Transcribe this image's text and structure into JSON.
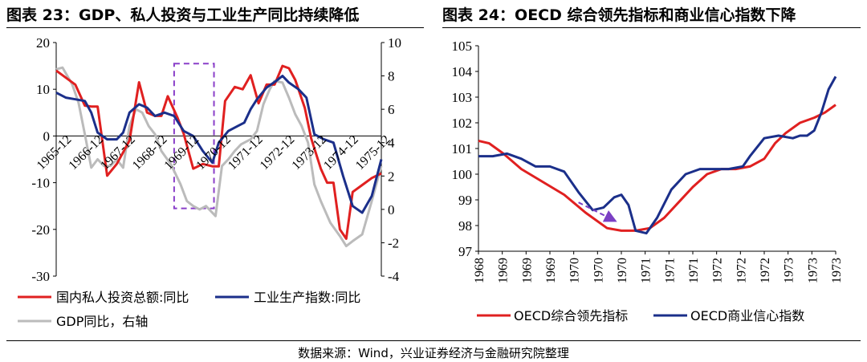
{
  "charts": {
    "left_title": "图表 23：GDP、私人投资与工业生产同比持续降低",
    "right_title": "图表 24：OECD 综合领先指标和商业信心指数下降"
  },
  "source": "数据来源：Wind，兴业证券经济与金融研究院整理",
  "chart_data": [
    {
      "type": "line",
      "title": "图表 23：GDP、私人投资与工业生产同比持续降低",
      "x_tick_labels": [
        "1965-12",
        "1966-12",
        "1967-12",
        "1968-12",
        "1969-12",
        "1970-12",
        "1971-12",
        "1972-12",
        "1973-12",
        "1974-12",
        "1975-12"
      ],
      "y_left_ticks": [
        20,
        10,
        0,
        -10,
        -20,
        -30
      ],
      "y_right_ticks": [
        10,
        8,
        6,
        4,
        2,
        0,
        -2,
        -4
      ],
      "ylim_left": [
        -30,
        20
      ],
      "ylim_right": [
        -4,
        10
      ],
      "x_range": [
        1965.9,
        1976.1
      ],
      "highlight_box": {
        "x_from": 1969.6,
        "x_to": 1970.85,
        "y_from": -15.5,
        "y_to": 15.5
      },
      "series": [
        {
          "name": "国内私人投资总额:同比",
          "axis": "left",
          "color": "#e02020",
          "x": [
            1965.9,
            1966.2,
            1966.5,
            1966.8,
            1967.0,
            1967.2,
            1967.5,
            1967.8,
            1968.0,
            1968.2,
            1968.5,
            1968.75,
            1969.0,
            1969.2,
            1969.4,
            1969.7,
            1969.9,
            1970.2,
            1970.5,
            1970.8,
            1971.0,
            1971.2,
            1971.5,
            1971.75,
            1972.0,
            1972.25,
            1972.5,
            1972.75,
            1973.0,
            1973.2,
            1973.4,
            1973.5,
            1973.7,
            1973.9,
            1974.2,
            1974.4,
            1974.6,
            1974.8,
            1975.0,
            1975.2,
            1975.5,
            1975.8,
            1976.1
          ],
          "y": [
            14,
            12.5,
            11,
            6.5,
            6.3,
            6.3,
            -8.5,
            -6,
            -3.5,
            -1,
            11.5,
            5,
            4.3,
            4.3,
            8.5,
            4,
            0.5,
            -7,
            -6,
            -6.5,
            -6.5,
            7.5,
            10.5,
            10,
            13,
            7,
            11,
            11,
            15,
            14.5,
            12,
            10,
            6,
            -0.5,
            -7,
            -10,
            -10,
            -20,
            -22,
            -12,
            -10.5,
            -9,
            -8
          ]
        },
        {
          "name": "工业生产指数:同比",
          "axis": "right",
          "color": "#1b2f8a",
          "x": [
            1965.9,
            1966.2,
            1966.5,
            1966.8,
            1967.0,
            1967.2,
            1967.5,
            1967.8,
            1968.0,
            1968.2,
            1968.5,
            1968.75,
            1969.0,
            1969.3,
            1969.6,
            1969.9,
            1970.2,
            1970.5,
            1970.8,
            1971.0,
            1971.3,
            1971.6,
            1971.8,
            1972.0,
            1972.2,
            1972.5,
            1972.8,
            1973.0,
            1973.2,
            1973.5,
            1973.75,
            1974.0,
            1974.3,
            1974.6,
            1974.9,
            1975.2,
            1975.5,
            1975.8,
            1976.1
          ],
          "y": [
            7,
            6.7,
            6.6,
            6.5,
            5.8,
            4.6,
            4.2,
            4.2,
            4.6,
            5.8,
            6.3,
            6.1,
            5.6,
            5.8,
            5.6,
            4.7,
            4.4,
            3.5,
            2.8,
            4,
            4.7,
            5,
            5.2,
            6,
            6.6,
            7.3,
            7.7,
            8,
            7.6,
            7.2,
            6.7,
            4.5,
            4.2,
            4.0,
            2,
            0.2,
            -0.2,
            0.8,
            3
          ]
        },
        {
          "name": "GDP同比，右轴",
          "axis": "right",
          "color": "#bbbbbb",
          "x": [
            1965.9,
            1966.1,
            1966.4,
            1966.6,
            1966.8,
            1967.0,
            1967.2,
            1967.4,
            1967.6,
            1967.8,
            1968.0,
            1968.2,
            1968.4,
            1968.6,
            1968.8,
            1969.0,
            1969.2,
            1969.5,
            1969.8,
            1970.0,
            1970.2,
            1970.4,
            1970.6,
            1970.9,
            1971.1,
            1971.3,
            1971.5,
            1971.7,
            1972.0,
            1972.2,
            1972.4,
            1972.6,
            1972.75,
            1973.0,
            1973.2,
            1973.4,
            1973.6,
            1973.8,
            1974.0,
            1974.2,
            1974.5,
            1974.8,
            1975.0,
            1975.2,
            1975.5,
            1975.8,
            1976.1
          ],
          "y": [
            8.4,
            8.5,
            7.5,
            6.4,
            4.5,
            2.5,
            3.0,
            2.6,
            2.6,
            3.0,
            2.5,
            5,
            6,
            5.8,
            5,
            4.5,
            3.5,
            2.7,
            1.5,
            0.5,
            0.2,
            0,
            0.2,
            -0.4,
            2.6,
            3,
            3.5,
            3.9,
            4.2,
            4.7,
            6.3,
            7.2,
            7.7,
            7.6,
            6.7,
            5.7,
            5,
            4,
            1.5,
            0.5,
            -0.8,
            -1.6,
            -2.2,
            -1.9,
            -1.5,
            0.5,
            2.6
          ]
        }
      ]
    },
    {
      "type": "line",
      "title": "图表 24：OECD 综合领先指标和商业信心指数下降",
      "x_tick_labels": [
        "1968",
        "1969",
        "1969",
        "1969",
        "1970",
        "1970",
        "1970",
        "1971",
        "1971",
        "1971",
        "1972",
        "1972",
        "1972",
        "1973",
        "1973",
        "1973"
      ],
      "y_ticks": [
        105,
        104,
        103,
        102,
        101,
        100,
        99,
        98,
        97
      ],
      "ylim": [
        97,
        105
      ],
      "x_range": [
        1968.0,
        1973.0
      ],
      "series": [
        {
          "name": "OECD综合领先指标",
          "color": "#e02020",
          "x": [
            1968.0,
            1968.15,
            1968.35,
            1968.6,
            1968.9,
            1969.2,
            1969.5,
            1969.8,
            1970.0,
            1970.2,
            1970.4,
            1970.6,
            1970.8,
            1971.0,
            1971.2,
            1971.4,
            1971.6,
            1971.8,
            1972.0,
            1972.15,
            1972.3,
            1972.5,
            1972.7,
            1972.85,
            1973.0
          ],
          "y": [
            101.3,
            101.2,
            100.8,
            100.2,
            99.7,
            99.2,
            98.5,
            97.9,
            97.8,
            97.8,
            97.9,
            98.3,
            98.9,
            99.5,
            100.0,
            100.2,
            100.2,
            100.3,
            100.6,
            101.2,
            101.6,
            102.0,
            102.2,
            102.4,
            102.7
          ]
        },
        {
          "name": "OECD商业信心指数",
          "color": "#1b2f8a",
          "x": [
            1968.0,
            1968.2,
            1968.4,
            1968.6,
            1968.8,
            1969.0,
            1969.2,
            1969.4,
            1969.6,
            1969.75,
            1969.9,
            1970.0,
            1970.1,
            1970.2,
            1970.35,
            1970.5,
            1970.7,
            1970.9,
            1971.1,
            1971.3,
            1971.5,
            1971.7,
            1971.8,
            1972.0,
            1972.2,
            1972.4,
            1972.5,
            1972.6,
            1972.7,
            1972.8,
            1972.9,
            1973.0
          ],
          "y": [
            100.7,
            100.7,
            100.8,
            100.6,
            100.3,
            100.3,
            100.1,
            99.3,
            98.6,
            98.7,
            99.1,
            99.2,
            98.8,
            97.8,
            97.7,
            98.3,
            99.4,
            100.0,
            100.2,
            100.2,
            100.2,
            100.3,
            100.7,
            101.4,
            101.5,
            101.4,
            101.5,
            101.5,
            101.7,
            102.4,
            103.3,
            103.8
          ]
        }
      ],
      "annotation": {
        "type": "arrow",
        "color": "#7b3fc4",
        "from": [
          1969.4,
          98.9
        ],
        "to": [
          1969.9,
          98.2
        ]
      }
    }
  ],
  "legend_left": [
    "国内私人投资总额:同比",
    "工业生产指数:同比",
    "GDP同比，右轴"
  ],
  "legend_right": [
    "OECD综合领先指标",
    "OECD商业信心指数"
  ]
}
